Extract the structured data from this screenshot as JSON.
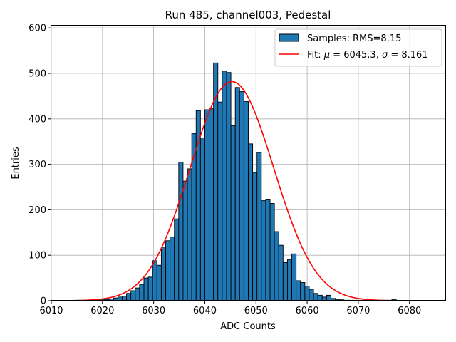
{
  "chart_data": {
    "type": "bar",
    "title": "Run 485, channel003, Pedestal",
    "xlabel": "ADC Counts",
    "ylabel": "Entries",
    "xlim": [
      6010,
      6087
    ],
    "ylim": [
      0,
      605
    ],
    "xticks": [
      6010,
      6020,
      6030,
      6040,
      6050,
      6060,
      6070,
      6080
    ],
    "yticks": [
      0,
      100,
      200,
      300,
      400,
      500,
      600
    ],
    "grid": true,
    "legend_position": "top-right",
    "bar_color": "#1f77b4",
    "fit_color": "#ff0000",
    "bin_width": 0.85,
    "histogram": {
      "name": "Samples: RMS=8.15",
      "bins": [
        [
          6014.5,
          1
        ],
        [
          6015.35,
          1
        ],
        [
          6016.2,
          1
        ],
        [
          6017.05,
          1
        ],
        [
          6017.9,
          2
        ],
        [
          6018.75,
          2
        ],
        [
          6019.6,
          3
        ],
        [
          6020.45,
          3
        ],
        [
          6021.3,
          4
        ],
        [
          6022.15,
          6
        ],
        [
          6023.0,
          8
        ],
        [
          6023.85,
          10
        ],
        [
          6024.7,
          16
        ],
        [
          6025.55,
          22
        ],
        [
          6026.4,
          28
        ],
        [
          6027.25,
          36
        ],
        [
          6028.1,
          50
        ],
        [
          6028.95,
          52
        ],
        [
          6029.8,
          88
        ],
        [
          6030.65,
          78
        ],
        [
          6031.5,
          118
        ],
        [
          6032.35,
          132
        ],
        [
          6033.2,
          140
        ],
        [
          6034.05,
          180
        ],
        [
          6034.9,
          305
        ],
        [
          6035.75,
          263
        ],
        [
          6036.6,
          290
        ],
        [
          6037.45,
          368
        ],
        [
          6038.3,
          418
        ],
        [
          6039.15,
          358
        ],
        [
          6040.0,
          420
        ],
        [
          6040.85,
          422
        ],
        [
          6041.7,
          523
        ],
        [
          6042.55,
          437
        ],
        [
          6043.4,
          505
        ],
        [
          6044.25,
          502
        ],
        [
          6045.1,
          385
        ],
        [
          6045.95,
          469
        ],
        [
          6046.8,
          460
        ],
        [
          6047.65,
          438
        ],
        [
          6048.5,
          345
        ],
        [
          6049.35,
          282
        ],
        [
          6050.2,
          326
        ],
        [
          6051.05,
          220
        ],
        [
          6051.9,
          222
        ],
        [
          6052.75,
          214
        ],
        [
          6053.6,
          152
        ],
        [
          6054.45,
          122
        ],
        [
          6055.3,
          84
        ],
        [
          6056.15,
          90
        ],
        [
          6057.0,
          103
        ],
        [
          6057.85,
          44
        ],
        [
          6058.7,
          40
        ],
        [
          6059.55,
          32
        ],
        [
          6060.4,
          25
        ],
        [
          6061.25,
          16
        ],
        [
          6062.1,
          12
        ],
        [
          6062.95,
          8
        ],
        [
          6063.8,
          12
        ],
        [
          6064.65,
          5
        ],
        [
          6065.5,
          3
        ],
        [
          6066.35,
          2
        ],
        [
          6067.2,
          1
        ],
        [
          6068.05,
          1
        ],
        [
          6068.9,
          1
        ],
        [
          6069.75,
          1
        ],
        [
          6070.6,
          1
        ],
        [
          6071.45,
          1
        ],
        [
          6072.3,
          1
        ],
        [
          6073.15,
          1
        ],
        [
          6074.0,
          1
        ],
        [
          6074.85,
          1
        ],
        [
          6075.7,
          1
        ],
        [
          6076.55,
          3
        ]
      ]
    },
    "fit": {
      "name": "Fit: μ = 6045.3, σ = 8.161",
      "label_prefix": "Fit: ",
      "mu_symbol": "μ",
      "mu_text": " = 6045.3, ",
      "sigma_symbol": "σ",
      "sigma_text": " = 8.161",
      "mu": 6045.3,
      "sigma": 8.161,
      "amplitude": 482,
      "x_range": [
        6013,
        6077
      ]
    }
  }
}
